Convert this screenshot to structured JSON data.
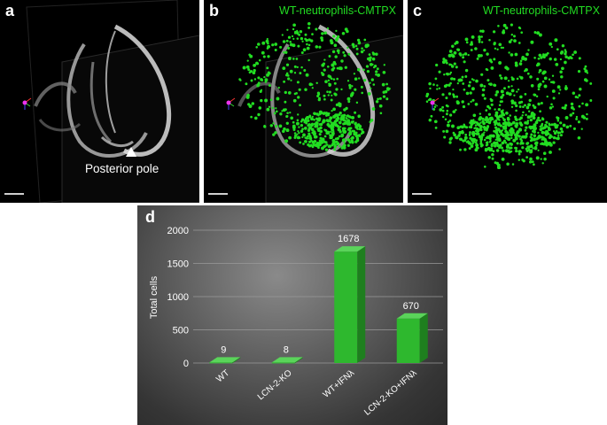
{
  "panels": {
    "a": {
      "letter": "a",
      "annotation": "Posterior pole"
    },
    "b": {
      "letter": "b",
      "title": "WT-neutrophils-CMTPX"
    },
    "c": {
      "letter": "c",
      "title": "WT-neutrophils-CMTPX"
    },
    "d": {
      "letter": "d"
    }
  },
  "colors": {
    "cell_green": "#22dd22",
    "bar_green": "#2eb82e",
    "bar_side": "#1e7f1e",
    "bar_top": "#5ad45a"
  },
  "chart_data": {
    "type": "bar",
    "categories": [
      "WT",
      "LCN-2-KO",
      "WT+IFNλ",
      "LCN-2-KO+IFNλ"
    ],
    "values": [
      9,
      8,
      1678,
      670
    ],
    "data_labels": [
      "9",
      "8",
      "1678",
      "670"
    ],
    "title": "",
    "xlabel": "",
    "ylabel": "Total cells",
    "ylim": [
      0,
      2000
    ],
    "yticks": [
      "0",
      "500",
      "1000",
      "1500",
      "2000"
    ],
    "grid": true,
    "style": "3d-columns"
  }
}
